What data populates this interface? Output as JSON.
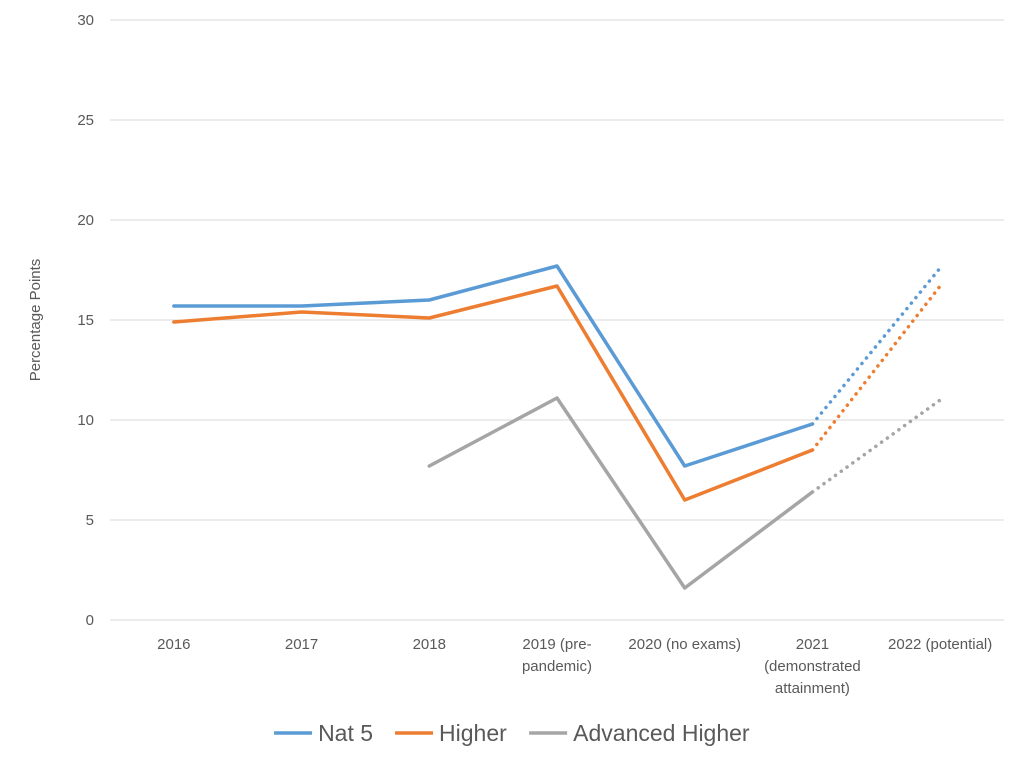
{
  "chart_data": {
    "type": "line",
    "categories": [
      [
        "2016"
      ],
      [
        "2017"
      ],
      [
        "2018"
      ],
      [
        "2019 (pre-",
        "pandemic)"
      ],
      [
        "2020 (no exams)"
      ],
      [
        "2021",
        "(demonstrated",
        "attainment)"
      ],
      [
        "2022 (potential)"
      ]
    ],
    "ylabel": "Percentage Points",
    "ylim": [
      0,
      30
    ],
    "yticks": [
      0,
      5,
      10,
      15,
      20,
      25,
      30
    ],
    "grid": true,
    "legend_position": "bottom",
    "series": [
      {
        "name": "Nat 5",
        "color": "#5B9BD5",
        "values": [
          15.7,
          15.7,
          16.0,
          17.7,
          7.7,
          9.8,
          17.6
        ],
        "dotted_from_index": 5
      },
      {
        "name": "Higher",
        "color": "#ED7D31",
        "values": [
          14.9,
          15.4,
          15.1,
          16.7,
          6.0,
          8.5,
          16.7
        ],
        "dotted_from_index": 5
      },
      {
        "name": "Advanced Higher",
        "color": "#A5A5A5",
        "values": [
          null,
          null,
          7.7,
          11.1,
          1.6,
          6.4,
          11.0
        ],
        "dotted_from_index": 5
      }
    ]
  }
}
